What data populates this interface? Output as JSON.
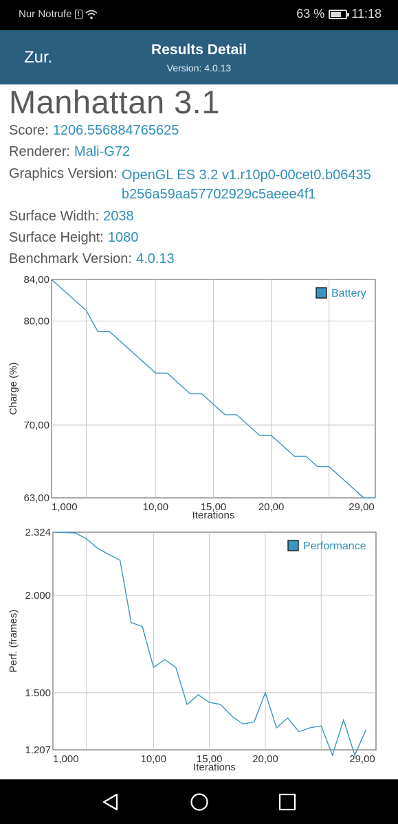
{
  "status_bar": {
    "carrier": "Nur Notrufe",
    "battery_percent": "63 %",
    "battery_level": 0.63,
    "time": "11:18"
  },
  "header": {
    "back_label": "Zur.",
    "title": "Results Detail",
    "subtitle": "Version: 4.0.13"
  },
  "benchmark": {
    "name": "Manhattan 3.1",
    "fields": [
      {
        "label": "Score:",
        "value": "1206.556884765625"
      },
      {
        "label": "Renderer:",
        "value": "Mali-G72"
      },
      {
        "label": "Graphics Version:",
        "value": "OpenGL ES 3.2 v1.r10p0-00cet0.b06435b256a59aa57702929c5aeee4f1"
      },
      {
        "label": "Surface Width:",
        "value": "2038"
      },
      {
        "label": "Surface Height:",
        "value": "1080"
      },
      {
        "label": "Benchmark Version:",
        "value": "4.0.13"
      }
    ]
  },
  "chart_data": [
    {
      "type": "line",
      "title": "",
      "xlabel": "Iterations",
      "ylabel": "Charge (%)",
      "legend": "Battery",
      "legend_position": "top-right",
      "grid": true,
      "xlim": [
        1,
        29
      ],
      "ylim": [
        63,
        84
      ],
      "x_ticks": [
        "1,000",
        "10,00",
        "15,00",
        "20,00",
        "29,00"
      ],
      "x_tick_values": [
        1,
        10,
        15,
        20,
        29
      ],
      "x_grid": [
        4,
        10,
        15,
        20,
        25
      ],
      "y_ticks": [
        "84,00",
        "80,00",
        "70,00",
        "63,00"
      ],
      "y_tick_values": [
        84,
        80,
        70,
        63
      ],
      "series": [
        {
          "name": "Battery",
          "color": "#3a95c0",
          "points": [
            [
              1,
              84
            ],
            [
              4,
              81
            ],
            [
              5,
              79
            ],
            [
              6,
              79
            ],
            [
              10,
              75
            ],
            [
              11,
              75
            ],
            [
              13,
              73
            ],
            [
              14,
              73
            ],
            [
              16,
              71
            ],
            [
              17,
              71
            ],
            [
              19,
              69
            ],
            [
              20,
              69
            ],
            [
              22,
              67
            ],
            [
              23,
              67
            ],
            [
              24,
              66
            ],
            [
              25,
              66
            ],
            [
              28,
              63
            ],
            [
              29,
              63
            ]
          ]
        }
      ]
    },
    {
      "type": "line",
      "title": "",
      "xlabel": "Iterations",
      "ylabel": "Perf. (frames)",
      "legend": "Performance",
      "legend_position": "top-right",
      "grid": true,
      "xlim": [
        1,
        29.9
      ],
      "ylim": [
        1.207,
        2.324
      ],
      "x_ticks": [
        "1,000",
        "10,00",
        "15,00",
        "20,00",
        "29,00"
      ],
      "x_tick_values": [
        1,
        10,
        15,
        20,
        29
      ],
      "x_grid": [
        4,
        10,
        15,
        20,
        25
      ],
      "y_ticks": [
        "2.324",
        "2.000",
        "1.500",
        "1.207"
      ],
      "y_tick_values": [
        2.324,
        2.0,
        1.5,
        1.207
      ],
      "series": [
        {
          "name": "Performance",
          "color": "#3a95c0",
          "points": [
            [
              1,
              2.324
            ],
            [
              3,
              2.32
            ],
            [
              4,
              2.29
            ],
            [
              5,
              2.24
            ],
            [
              7,
              2.18
            ],
            [
              8,
              1.86
            ],
            [
              9,
              1.84
            ],
            [
              10,
              1.63
            ],
            [
              11,
              1.67
            ],
            [
              12,
              1.63
            ],
            [
              13,
              1.44
            ],
            [
              14,
              1.49
            ],
            [
              15,
              1.45
            ],
            [
              16,
              1.44
            ],
            [
              17,
              1.38
            ],
            [
              18,
              1.34
            ],
            [
              19,
              1.35
            ],
            [
              20,
              1.5
            ],
            [
              21,
              1.32
            ],
            [
              22,
              1.37
            ],
            [
              23,
              1.3
            ],
            [
              24,
              1.32
            ],
            [
              25,
              1.33
            ],
            [
              26,
              1.18
            ],
            [
              27,
              1.36
            ],
            [
              28,
              1.18
            ],
            [
              29,
              1.31
            ]
          ]
        }
      ]
    }
  ]
}
